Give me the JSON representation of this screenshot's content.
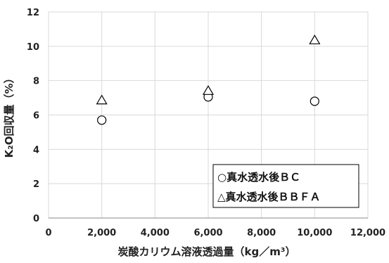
{
  "chart_data": {
    "type": "scatter",
    "xlabel": "炭酸カリウム溶液透過量（kg／m³）",
    "ylabel": "K₂O回収量（%）",
    "xlim": [
      0,
      12000
    ],
    "ylim": [
      0,
      12
    ],
    "x_ticks": [
      "0",
      "2,000",
      "4,000",
      "6,000",
      "8,000",
      "10,000",
      "12,000"
    ],
    "y_ticks": [
      "0",
      "2",
      "4",
      "6",
      "8",
      "10",
      "12"
    ],
    "grid": true,
    "legend_position": "bottom-right",
    "series": [
      {
        "name": "真水透水後ＢＣ",
        "marker": "circle",
        "legend_label": "○真水透水後ＢＣ",
        "points": [
          {
            "x": 2000,
            "y": 5.7
          },
          {
            "x": 6000,
            "y": 7.05
          },
          {
            "x": 10000,
            "y": 6.8
          }
        ]
      },
      {
        "name": "真水透水後ＢＢＦＡ",
        "marker": "triangle",
        "legend_label": "△真水透水後ＢＢＦＡ",
        "points": [
          {
            "x": 2000,
            "y": 6.85
          },
          {
            "x": 6000,
            "y": 7.4
          },
          {
            "x": 10000,
            "y": 10.35
          }
        ]
      }
    ],
    "colors": {
      "marker_stroke": "#000000",
      "grid": "#d9d9d9",
      "axis": "#888888"
    }
  }
}
